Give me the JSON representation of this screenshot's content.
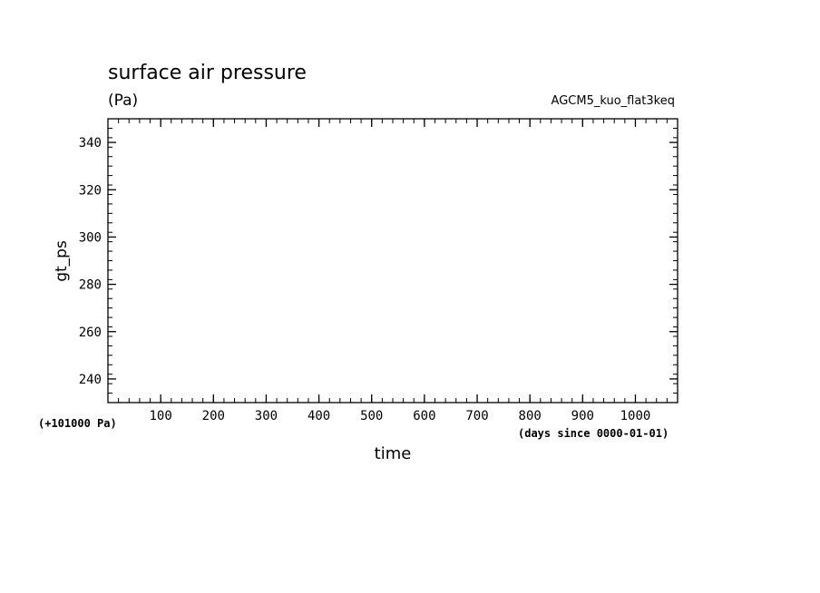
{
  "chart_data": {
    "type": "line",
    "title": "surface air pressure",
    "units": "(Pa)",
    "experiment": "AGCM5_kuo_flat3keq",
    "xlabel": "time",
    "x_unit_note": "(days since 0000-01-01)",
    "ylabel": "gt_ps",
    "y_offset_note": "(+101000 Pa)",
    "xlim": [
      0,
      1080
    ],
    "ylim": [
      230,
      350
    ],
    "x_ticks": [
      100,
      200,
      300,
      400,
      500,
      600,
      700,
      800,
      900,
      1000
    ],
    "y_ticks": [
      240,
      260,
      280,
      300,
      320,
      340
    ],
    "x_minor_step": 20,
    "y_minor_step": 4,
    "grid": false,
    "series": []
  }
}
